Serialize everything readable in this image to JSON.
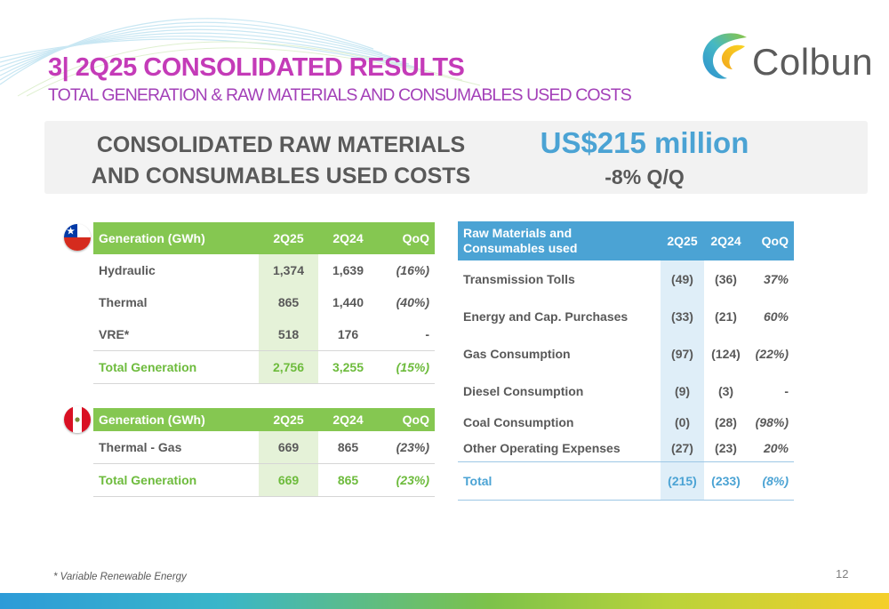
{
  "header": {
    "title": "3| 2Q25 CONSOLIDATED RESULTS",
    "subtitle": "TOTAL GENERATION & RAW MATERIALS AND CONSUMABLES USED COSTS"
  },
  "logo": {
    "text": "Colbun"
  },
  "summary": {
    "heading_line1": "CONSOLIDATED  RAW MATERIALS",
    "heading_line2": "AND CONSUMABLES USED COSTS",
    "amount": "US$215 million",
    "change": "-8% Q/Q"
  },
  "chile_table": {
    "country_icon": "chile-flag-icon",
    "headers": [
      "Generation (GWh)",
      "2Q25",
      "2Q24",
      "QoQ"
    ],
    "rows": [
      [
        "Hydraulic",
        "1,374",
        "1,639",
        "(16%)"
      ],
      [
        "Thermal",
        "865",
        "1,440",
        "(40%)"
      ],
      [
        "VRE*",
        "518",
        "176",
        "-"
      ],
      [
        "Total Generation",
        "2,756",
        "3,255",
        "(15%)"
      ]
    ]
  },
  "peru_table": {
    "country_icon": "peru-flag-icon",
    "headers": [
      "Generation (GWh)",
      "2Q25",
      "2Q24",
      "QoQ"
    ],
    "rows": [
      [
        "Thermal - Gas",
        "669",
        "865",
        "(23%)"
      ],
      [
        "Total Generation",
        "669",
        "865",
        "(23%)"
      ]
    ]
  },
  "costs_table": {
    "headers": [
      "Raw Materials and Consumables used",
      "2Q25",
      "2Q24",
      "QoQ"
    ],
    "rows": [
      [
        "Transmission Tolls",
        "(49)",
        "(36)",
        "37%"
      ],
      [
        "Energy and Cap. Purchases",
        "(33)",
        "(21)",
        "60%"
      ],
      [
        "Gas Consumption",
        "(97)",
        "(124)",
        "(22%)"
      ],
      [
        "Diesel Consumption",
        "(9)",
        "(3)",
        "-"
      ],
      [
        "Coal Consumption",
        "(0)",
        "(28)",
        "(98%)"
      ],
      [
        "Other Operating  Expenses",
        "(27)",
        "(23)",
        "20%"
      ],
      [
        "Total",
        "(215)",
        "(233)",
        "(8%)"
      ]
    ]
  },
  "footnote": "* Variable Renewable Energy",
  "page_number": "12"
}
